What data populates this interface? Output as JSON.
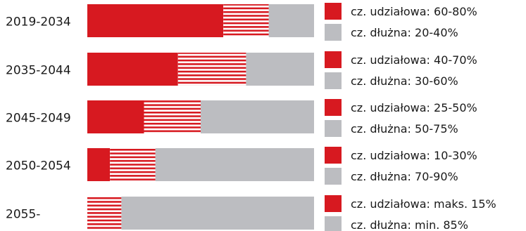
{
  "chart_data": {
    "type": "bar",
    "orientation": "horizontal",
    "stacked": true,
    "title": "",
    "xlabel": "",
    "ylabel": "",
    "xlim": [
      0,
      100
    ],
    "colors": {
      "equity": "#d71920",
      "range": "#d71920",
      "debt": "#bcbdc1"
    },
    "legend_position": "right of each bar",
    "categories": [
      "2019-2034",
      "2035-2044",
      "2045-2049",
      "2050-2054",
      "2055-"
    ],
    "bars": [
      {
        "period": "2019-2034",
        "equity_min": 60,
        "equity_max": 80,
        "legend": [
          "cz. udziałowa: 60-80%",
          "cz. dłużna: 20-40%"
        ]
      },
      {
        "period": "2035-2044",
        "equity_min": 40,
        "equity_max": 70,
        "legend": [
          "cz. udziałowa: 40-70%",
          "cz. dłużna: 30-60%"
        ]
      },
      {
        "period": "2045-2049",
        "equity_min": 25,
        "equity_max": 50,
        "legend": [
          "cz. udziałowa: 25-50%",
          "cz. dłużna: 50-75%"
        ]
      },
      {
        "period": "2050-2054",
        "equity_min": 10,
        "equity_max": 30,
        "legend": [
          "cz. udziałowa: 10-30%",
          "cz. dłużna: 70-90%"
        ]
      },
      {
        "period": "2055-",
        "equity_min": 0,
        "equity_max": 15,
        "legend": [
          "cz. udziałowa: maks. 15%",
          "cz. dłużna: min. 85%"
        ]
      }
    ]
  }
}
